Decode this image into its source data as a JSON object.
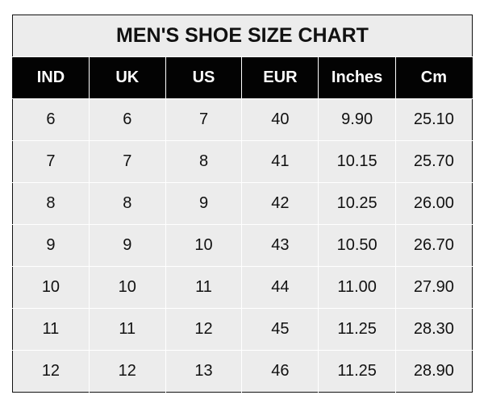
{
  "title": "MEN'S SHOE SIZE CHART",
  "columns": [
    "IND",
    "UK",
    "US",
    "EUR",
    "Inches",
    "Cm"
  ],
  "rows": [
    [
      "6",
      "6",
      "7",
      "40",
      "9.90",
      "25.10"
    ],
    [
      "7",
      "7",
      "8",
      "41",
      "10.15",
      "25.70"
    ],
    [
      "8",
      "8",
      "9",
      "42",
      "10.25",
      "26.00"
    ],
    [
      "9",
      "9",
      "10",
      "43",
      "10.50",
      "26.70"
    ],
    [
      "10",
      "10",
      "11",
      "44",
      "11.00",
      "27.90"
    ],
    [
      "11",
      "11",
      "12",
      "45",
      "11.25",
      "28.30"
    ],
    [
      "12",
      "12",
      "13",
      "46",
      "11.25",
      "28.90"
    ]
  ],
  "colors": {
    "header_bg": "#030303",
    "cell_bg": "#ececec",
    "grid": "#ffffff"
  }
}
